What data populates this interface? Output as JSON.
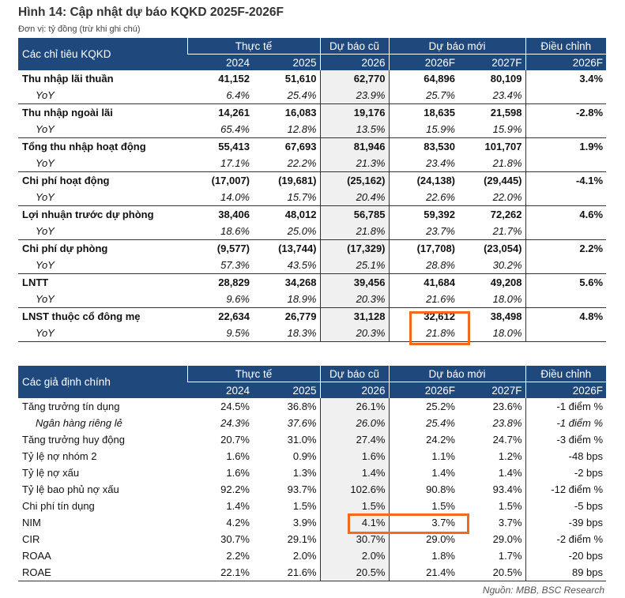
{
  "title": "Hình 14: Cập nhật dự báo KQKD 2025F-2026F",
  "unit": "Đơn vị: tỷ đồng (trừ khi ghi chú)",
  "headers": {
    "actual": "Thực tế",
    "old": "Dự báo cũ",
    "new": "Dự báo mới",
    "adj": "Điều chỉnh",
    "years": [
      "2024",
      "2025",
      "2026",
      "2026F",
      "2027F",
      "2026F"
    ]
  },
  "table1": {
    "label": "Các chỉ tiêu KQKD",
    "rows": [
      {
        "name": "Thu nhập lãi thuần",
        "v": [
          "41,152",
          "51,610",
          "62,770",
          "64,896",
          "80,109",
          "3.4%"
        ],
        "yoy": [
          "6.4%",
          "25.4%",
          "23.9%",
          "25.7%",
          "23.4%"
        ]
      },
      {
        "name": "Thu nhập ngoài lãi",
        "v": [
          "14,261",
          "16,083",
          "19,176",
          "18,635",
          "21,598",
          "-2.8%"
        ],
        "yoy": [
          "65.4%",
          "12.8%",
          "13.5%",
          "15.9%",
          "15.9%"
        ]
      },
      {
        "name": "Tổng thu nhập hoạt động",
        "v": [
          "55,413",
          "67,693",
          "81,946",
          "83,530",
          "101,707",
          "1.9%"
        ],
        "yoy": [
          "17.1%",
          "22.2%",
          "21.3%",
          "23.4%",
          "21.8%"
        ]
      },
      {
        "name": "Chi phí hoạt động",
        "v": [
          "(17,007)",
          "(19,681)",
          "(25,162)",
          "(24,138)",
          "(29,445)",
          "-4.1%"
        ],
        "yoy": [
          "14.0%",
          "15.7%",
          "20.4%",
          "22.6%",
          "22.0%"
        ]
      },
      {
        "name": "Lợi nhuận trước dự phòng",
        "v": [
          "38,406",
          "48,012",
          "56,785",
          "59,392",
          "72,262",
          "4.6%"
        ],
        "yoy": [
          "18.6%",
          "25.0%",
          "21.8%",
          "23.7%",
          "21.7%"
        ]
      },
      {
        "name": "Chi phí dự phòng",
        "v": [
          "(9,577)",
          "(13,744)",
          "(17,329)",
          "(17,708)",
          "(23,054)",
          "2.2%"
        ],
        "yoy": [
          "57.3%",
          "43.5%",
          "25.1%",
          "28.8%",
          "30.2%"
        ]
      },
      {
        "name": "LNTT",
        "v": [
          "28,829",
          "34,268",
          "39,456",
          "41,684",
          "49,208",
          "5.6%"
        ],
        "yoy": [
          "9.6%",
          "18.9%",
          "20.3%",
          "21.6%",
          "18.0%"
        ]
      },
      {
        "name": "LNST thuộc cổ đông mẹ",
        "v": [
          "22,634",
          "26,779",
          "31,128",
          "32,612",
          "38,498",
          "4.8%"
        ],
        "yoy": [
          "9.5%",
          "18.3%",
          "20.3%",
          "21.8%",
          "18.0%"
        ]
      }
    ],
    "yoy_label": "YoY"
  },
  "table2": {
    "label": "Các giả định chính",
    "rows": [
      {
        "name": "Tăng trưởng tín dụng",
        "v": [
          "24.5%",
          "36.8%",
          "26.1%",
          "25.2%",
          "23.6%",
          "-1 điểm %"
        ]
      },
      {
        "name": "Ngân hàng riêng lẻ",
        "italic": true,
        "v": [
          "24.3%",
          "37.6%",
          "26.0%",
          "25.4%",
          "23.8%",
          "-1 điểm %"
        ]
      },
      {
        "name": "Tăng trưởng huy động",
        "v": [
          "20.7%",
          "31.0%",
          "27.4%",
          "24.2%",
          "24.7%",
          "-3 điểm %"
        ]
      },
      {
        "name": "Tỷ lệ nợ nhóm 2",
        "v": [
          "1.6%",
          "0.9%",
          "1.6%",
          "1.1%",
          "1.2%",
          "-48 bps"
        ]
      },
      {
        "name": "Tỷ lệ nợ xấu",
        "v": [
          "1.6%",
          "1.3%",
          "1.4%",
          "1.4%",
          "1.4%",
          "-2 bps"
        ]
      },
      {
        "name": "Tỷ lệ bao phủ nợ xấu",
        "v": [
          "92.2%",
          "93.7%",
          "102.6%",
          "90.8%",
          "93.4%",
          "-12 điểm %"
        ]
      },
      {
        "name": "Chi phí tín dụng",
        "v": [
          "1.4%",
          "1.5%",
          "1.5%",
          "1.5%",
          "1.5%",
          "-5 bps"
        ]
      },
      {
        "name": "NIM",
        "v": [
          "4.2%",
          "3.9%",
          "4.1%",
          "3.7%",
          "3.7%",
          "-39 bps"
        ]
      },
      {
        "name": "CIR",
        "v": [
          "30.7%",
          "29.1%",
          "30.7%",
          "29.0%",
          "29.0%",
          "-2 điểm %"
        ]
      },
      {
        "name": "ROAA",
        "v": [
          "2.2%",
          "2.0%",
          "2.0%",
          "1.8%",
          "1.7%",
          "-20 bps"
        ]
      },
      {
        "name": "ROAE",
        "v": [
          "22.1%",
          "21.6%",
          "20.5%",
          "21.4%",
          "20.5%",
          "89 bps"
        ]
      }
    ]
  },
  "source": "Nguồn: MBB, BSC Research",
  "colors": {
    "header": "#1f497d",
    "highlight": "#f26a1b",
    "shade": "#f0f0f0"
  }
}
